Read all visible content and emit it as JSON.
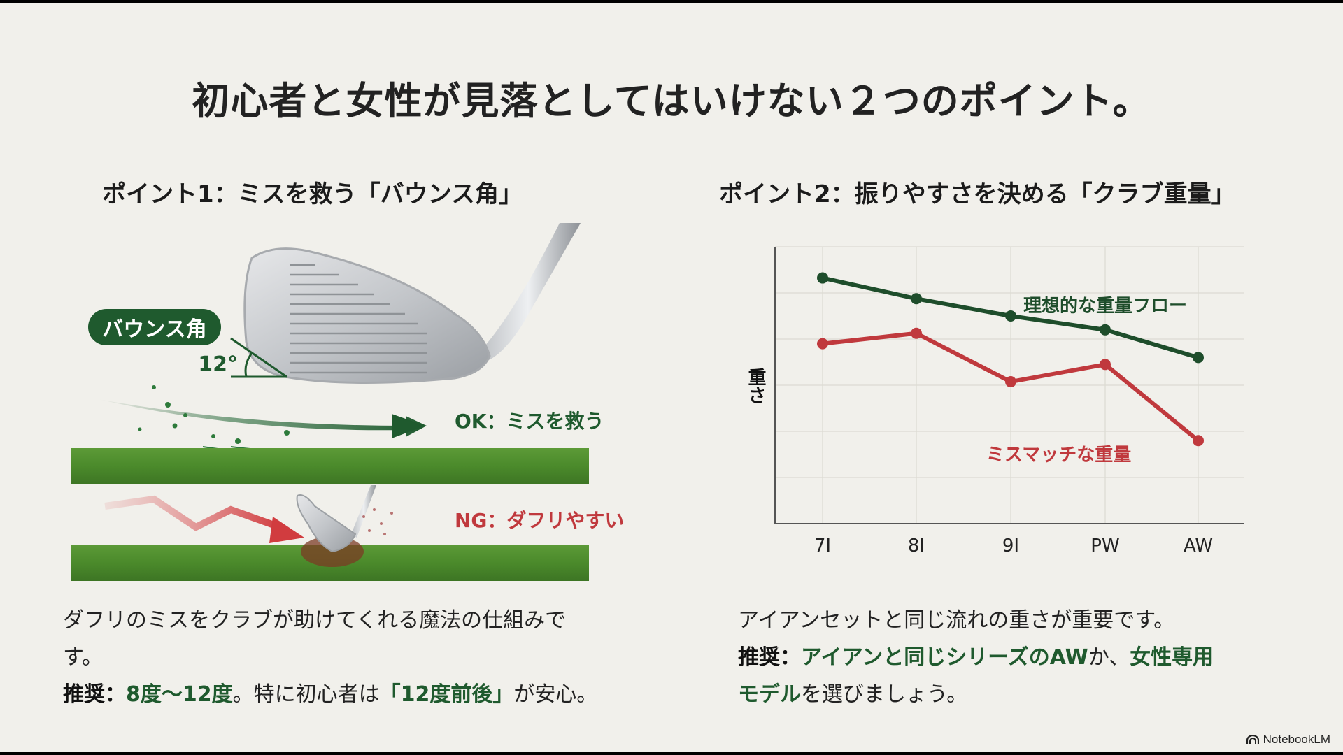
{
  "slide": {
    "title": "初心者と女性が見落としてはいけない２つのポイント。",
    "footer_brand": "NotebookLM"
  },
  "point1": {
    "heading": "ポイント1：ミスを救う「バウンス角」",
    "badge_label": "バウンス角",
    "angle_label": "12°",
    "ok_label": "OK：ミスを救う",
    "ng_label": "NG：ダフリやすい",
    "body_line1": "ダフリのミスをクラブが助けてくれる魔法の仕組みで",
    "body_line2": "す。",
    "rec_prefix": "推奨：",
    "rec_range": "8度〜12度",
    "rec_mid": "。特に初心者は",
    "rec_highlight": "「12度前後」",
    "rec_suffix": "が安心。",
    "colors": {
      "green": "#1f5a2e",
      "red": "#c0393d"
    }
  },
  "point2": {
    "heading": "ポイント2：振りやすさを決める「クラブ重量」",
    "body_line1": "アイアンセットと同じ流れの重さが重要です。",
    "rec_prefix": "推奨：",
    "rec_highlight1": "アイアンと同じシリーズのAW",
    "rec_mid": "か、",
    "rec_highlight2": "女性専用",
    "rec_highlight3": "モデル",
    "rec_suffix": "を選びましょう。"
  },
  "chart_data": {
    "type": "line",
    "title": "",
    "xlabel": "",
    "ylabel": "重さ",
    "categories": [
      "7I",
      "8I",
      "9I",
      "PW",
      "AW"
    ],
    "series": [
      {
        "name": "理想的な重量フロー",
        "color": "#1e4d2b",
        "values": [
          8.6,
          8.0,
          7.5,
          7.1,
          6.3
        ]
      },
      {
        "name": "ミスマッチな重量",
        "color": "#c0393d",
        "values": [
          6.7,
          7.0,
          5.6,
          6.1,
          3.9
        ]
      }
    ],
    "ylim": [
      1.5,
      9.5
    ],
    "grid": true,
    "y_ticks_labeled": false,
    "legend_position": "inline"
  }
}
